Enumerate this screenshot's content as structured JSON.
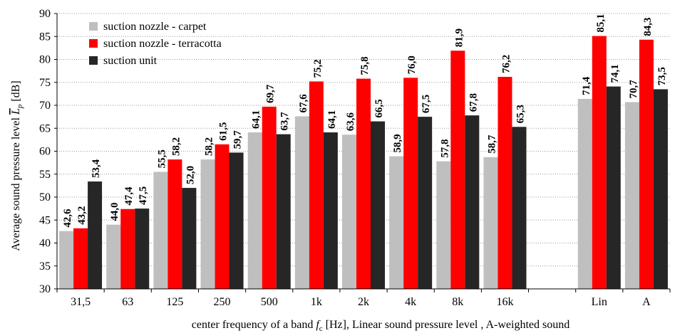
{
  "chart_data": {
    "type": "bar",
    "categories": [
      "31,5",
      "63",
      "125",
      "250",
      "500",
      "1k",
      "2k",
      "4k",
      "8k",
      "16k",
      "",
      "Lin",
      "A"
    ],
    "series": [
      {
        "name": "suction nozzle - carpet",
        "color": "#bfbfbf",
        "values": [
          42.6,
          44.0,
          55.5,
          58.2,
          64.1,
          67.6,
          63.6,
          58.9,
          57.8,
          58.7,
          null,
          71.4,
          70.7
        ],
        "labels": [
          "42,6",
          "44,0",
          "55,5",
          "58,2",
          "64,1",
          "67,6",
          "63,6",
          "58,9",
          "57,8",
          "58,7",
          "",
          "71,4",
          "70,7"
        ]
      },
      {
        "name": "suction nozzle - terracotta",
        "color": "#ff0000",
        "values": [
          43.2,
          47.4,
          58.2,
          61.5,
          69.7,
          75.2,
          75.8,
          76.0,
          81.9,
          76.2,
          null,
          85.1,
          84.3
        ],
        "labels": [
          "43,2",
          "47,4",
          "58,2",
          "61,5",
          "69,7",
          "75,2",
          "75,8",
          "76,0",
          "81,9",
          "76,2",
          "",
          "85,1",
          "84,3"
        ]
      },
      {
        "name": "suction unit",
        "color": "#262626",
        "values": [
          53.4,
          47.5,
          52.0,
          59.7,
          63.7,
          64.1,
          66.5,
          67.5,
          67.8,
          65.3,
          null,
          74.1,
          73.5
        ],
        "labels": [
          "53,4",
          "47,5",
          "52,0",
          "59,7",
          "63,7",
          "64,1",
          "66,5",
          "67,5",
          "67,8",
          "65,3",
          "",
          "74,1",
          "73,5"
        ]
      }
    ],
    "xlabel": "center frequency of a band",
    "xlabel_symbol": "f",
    "xlabel_subscript": "c",
    "xlabel_rest": " [Hz], Linear sound pressure level  , A-weighted sound",
    "ylabel": "Average sound pressure level",
    "ylabel_symbol": "L",
    "ylabel_subscript": "p",
    "ylabel_unit": " [dB]",
    "yticks": [
      "30",
      "35",
      "40",
      "45",
      "50",
      "55",
      "60",
      "65",
      "70",
      "75",
      "80",
      "85",
      "90"
    ],
    "ylim": [
      30,
      90
    ],
    "grid": "horizontal-dotted",
    "legend_position": "top-left"
  }
}
